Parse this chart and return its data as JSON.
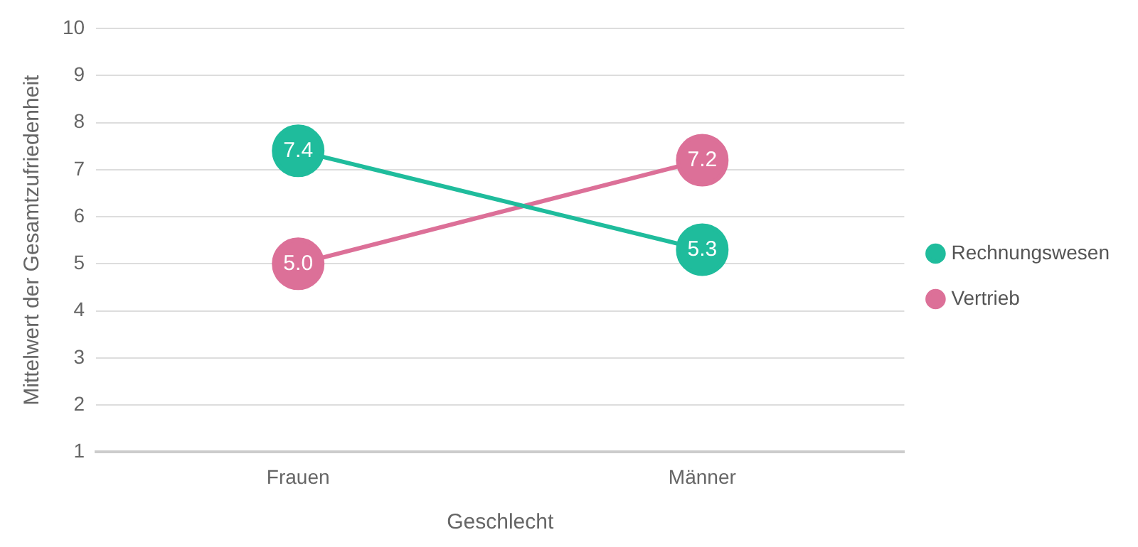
{
  "chart_data": {
    "type": "line",
    "xlabel": "Geschlecht",
    "ylabel": "Mittelwert der Gesamtzufriedenheit",
    "categories": [
      "Frauen",
      "Männer"
    ],
    "series": [
      {
        "name": "Rechnungswesen",
        "color": "#1fbc9c",
        "values": [
          7.4,
          5.3
        ],
        "value_labels": [
          "7.4",
          "5.3"
        ]
      },
      {
        "name": "Vertrieb",
        "color": "#dc7098",
        "values": [
          5.0,
          7.2
        ],
        "value_labels": [
          "5.0",
          "7.2"
        ]
      }
    ],
    "ylim": [
      1,
      10
    ],
    "yticks": [
      1,
      2,
      3,
      4,
      5,
      6,
      7,
      8,
      9,
      10
    ],
    "grid": "y",
    "legend": "right",
    "marker": "circle",
    "line_style": "solid"
  }
}
